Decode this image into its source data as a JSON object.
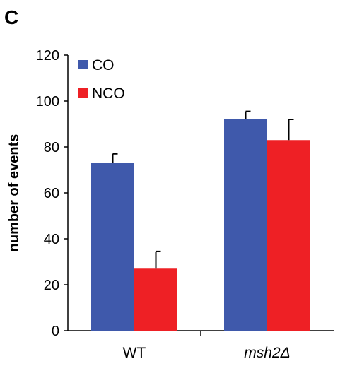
{
  "panel_label": "C",
  "chart_data": {
    "type": "bar",
    "title": "",
    "xlabel": "",
    "ylabel": "number of events",
    "ylim": [
      0,
      120
    ],
    "yticks": [
      0,
      20,
      40,
      60,
      80,
      100,
      120
    ],
    "categories": [
      "WT",
      "msh2Δ"
    ],
    "series": [
      {
        "name": "CO",
        "color": "#3f59ab",
        "values": [
          73,
          92
        ],
        "errors": [
          4,
          3.5
        ]
      },
      {
        "name": "NCO",
        "color": "#ee2025",
        "values": [
          27,
          83
        ],
        "errors": [
          7.5,
          9
        ]
      }
    ],
    "legend_position": "top-left",
    "grid": false
  }
}
